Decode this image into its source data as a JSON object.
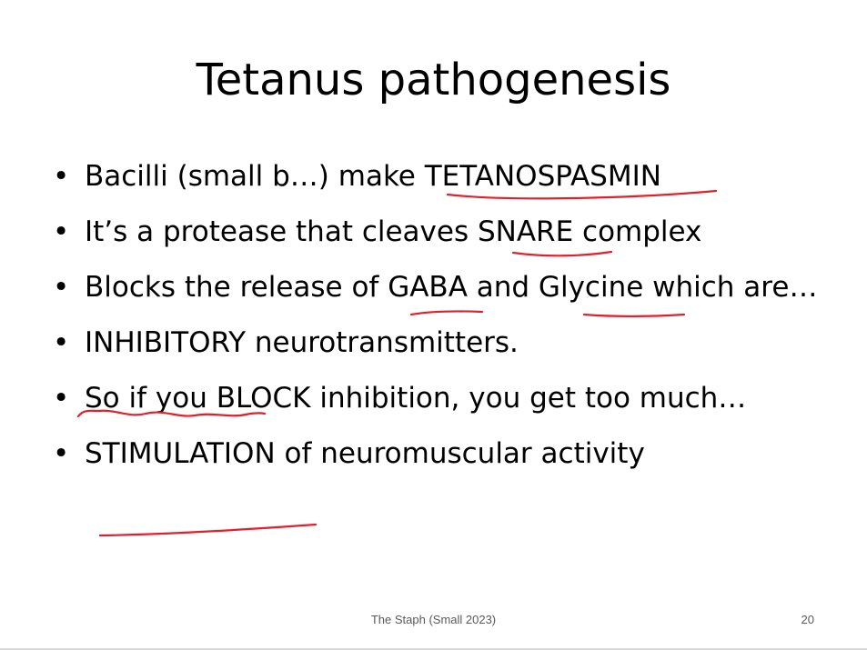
{
  "slide": {
    "title": "Tetanus pathogenesis",
    "bullets": [
      {
        "text": "Bacilli (small b…) make TETANOSPASMIN"
      },
      {
        "text": "It’s a protease that cleaves SNARE complex"
      },
      {
        "text": "Blocks the release of GABA and Glycine which are…"
      },
      {
        "text": "INHIBITORY neurotransmitters."
      },
      {
        "text": "So if you BLOCK inhibition, you get too much…"
      },
      {
        "text": "STIMULATION of neuromuscular activity"
      }
    ],
    "bullet_glyph": "•",
    "footer": "The Staph (Small 2023)",
    "page_number": "20"
  },
  "annotation_color": "#e0202a"
}
